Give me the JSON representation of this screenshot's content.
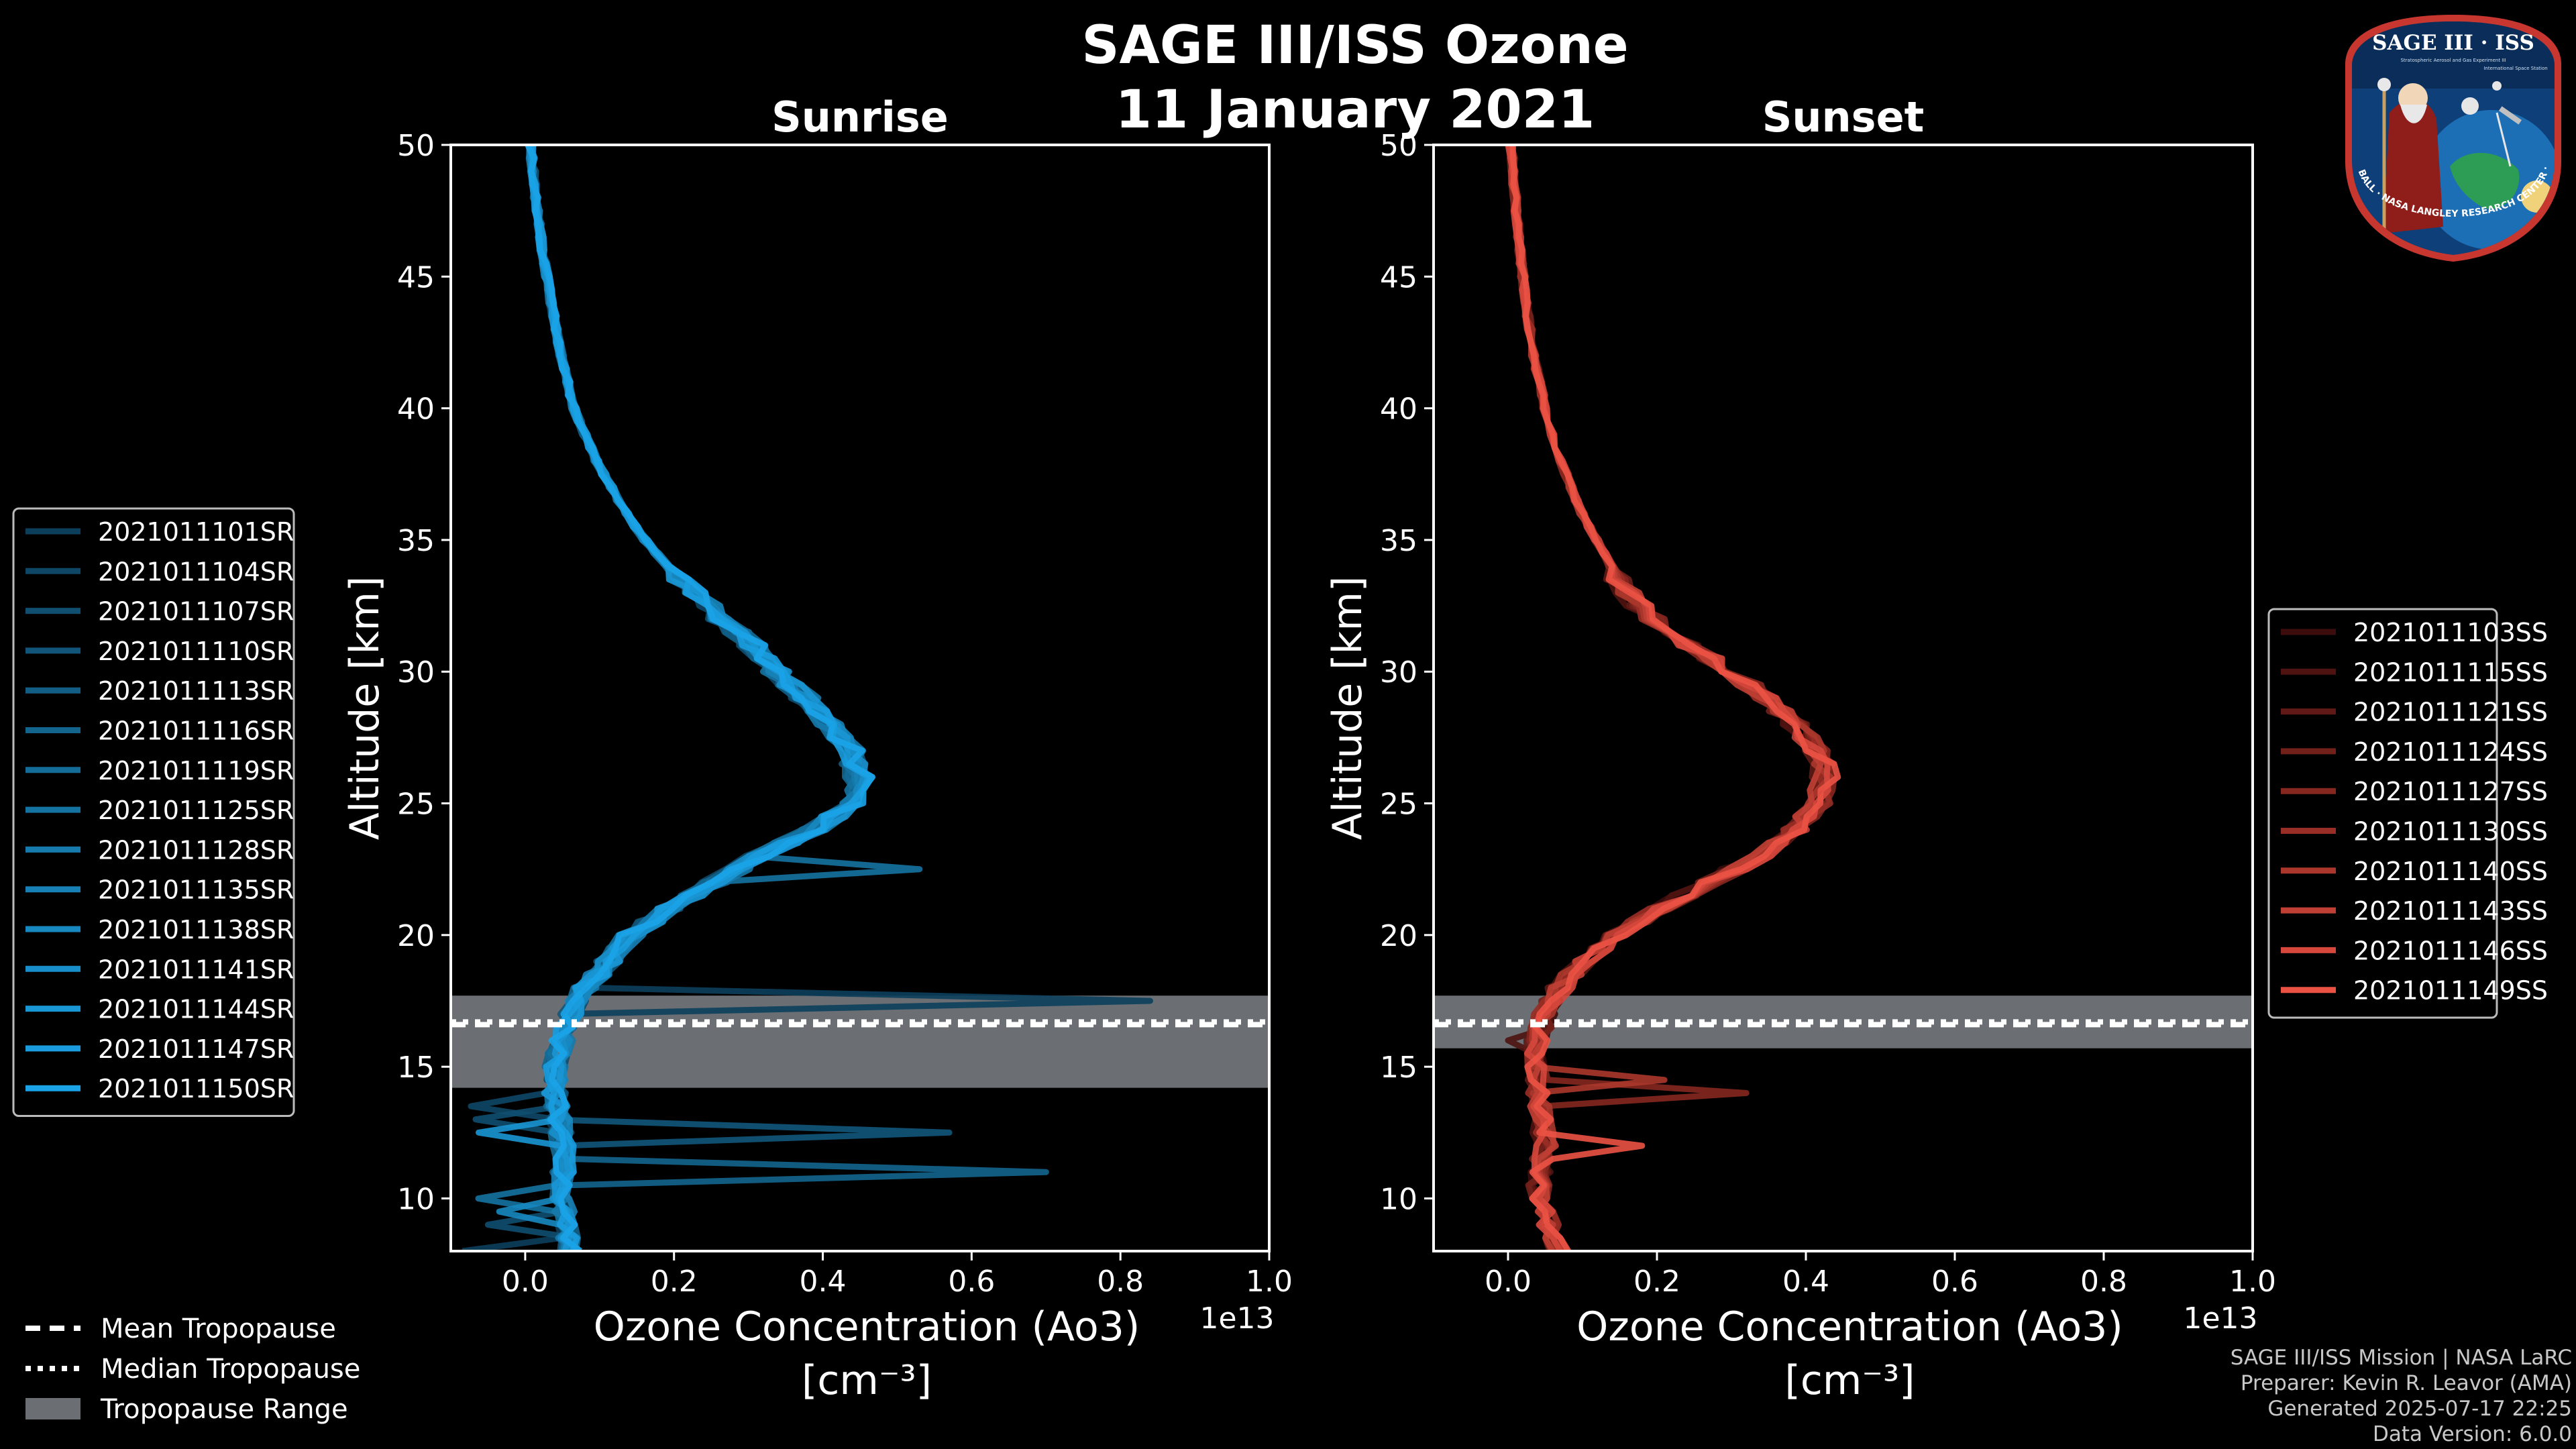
{
  "title_line1": "SAGE III/ISS Ozone",
  "title_line2": "11 January 2021",
  "badge": {
    "name": "SAGE III · ISS",
    "ring_text": "BALL · NASA LANGLEY RESEARCH CENTER · TAS · ESA",
    "inner_text_1": "Stratospheric Aerosol and Gas Experiment III",
    "inner_text_2": "International Space Station"
  },
  "credits": [
    "SAGE III/ISS Mission | NASA LaRC",
    "Preparer: Kevin R. Leavor (AMA)",
    "Generated 2025-07-17 22:25",
    "Data Version: 6.0.0"
  ],
  "colors": {
    "sunrise": "#1ba3e8",
    "sunset": "#f05545",
    "background": "#000000",
    "tropo_band": "#6b6e72"
  },
  "chart_data": [
    {
      "type": "line",
      "title": "Sunrise",
      "xlabel": "Ozone Concentration (Ao3)",
      "xlabel_units": "[cm⁻³]",
      "ylabel": "Altitude [km]",
      "x_scale_label": "1e13",
      "xlim": [
        -0.1,
        1.0
      ],
      "ylim": [
        8,
        50
      ],
      "xticks": [
        0.0,
        0.2,
        0.4,
        0.6,
        0.8,
        1.0
      ],
      "xtick_labels": [
        "0.0",
        "0.2",
        "0.4",
        "0.6",
        "0.8",
        "1.0"
      ],
      "yticks": [
        10,
        15,
        20,
        25,
        30,
        35,
        40,
        45,
        50
      ],
      "tropopause": {
        "mean": 16.6,
        "median": 16.7,
        "range": [
          14.2,
          17.7
        ]
      },
      "base_profile": {
        "altitude": [
          8,
          10,
          12,
          14,
          15,
          16,
          17,
          18,
          19,
          20,
          21,
          22,
          23,
          24,
          25,
          26,
          27,
          28,
          29,
          30,
          31,
          32,
          33,
          34,
          35,
          36,
          37,
          38,
          39,
          40,
          42,
          44,
          46,
          48,
          50
        ],
        "ozone": [
          0.06,
          0.05,
          0.05,
          0.04,
          0.04,
          0.05,
          0.06,
          0.08,
          0.11,
          0.14,
          0.19,
          0.25,
          0.31,
          0.38,
          0.43,
          0.44,
          0.43,
          0.4,
          0.37,
          0.33,
          0.3,
          0.26,
          0.22,
          0.19,
          0.16,
          0.135,
          0.115,
          0.095,
          0.08,
          0.065,
          0.048,
          0.035,
          0.023,
          0.014,
          0.007
        ]
      },
      "series": [
        {
          "name": "2021011101SR",
          "color": "#0c3f5c",
          "spike": {
            "alt": 17.3,
            "ozone": 0.84
          }
        },
        {
          "name": "2021011104SR",
          "color": "#0e4766"
        },
        {
          "name": "2021011107SR",
          "color": "#104f70"
        },
        {
          "name": "2021011110SR",
          "color": "#11567a",
          "spike": {
            "alt": 12.7,
            "ozone": 0.57
          }
        },
        {
          "name": "2021011113SR",
          "color": "#125e84"
        },
        {
          "name": "2021011116SR",
          "color": "#13658e",
          "spike": {
            "alt": 11.1,
            "ozone": 0.7
          }
        },
        {
          "name": "2021011119SR",
          "color": "#146c98"
        },
        {
          "name": "2021011125SR",
          "color": "#1573a2",
          "spike": {
            "alt": 22.5,
            "ozone": 0.53
          }
        },
        {
          "name": "2021011128SR",
          "color": "#167aac"
        },
        {
          "name": "2021011135SR",
          "color": "#1781b6"
        },
        {
          "name": "2021011138SR",
          "color": "#1788c0"
        },
        {
          "name": "2021011141SR",
          "color": "#188fca"
        },
        {
          "name": "2021011144SR",
          "color": "#1996d4"
        },
        {
          "name": "2021011147SR",
          "color": "#1a9cde"
        },
        {
          "name": "2021011150SR",
          "color": "#1ba3e8"
        }
      ],
      "tropopause_legend": [
        "Mean Tropopause",
        "Median Tropopause",
        "Tropopause Range"
      ]
    },
    {
      "type": "line",
      "title": "Sunset",
      "xlabel": "Ozone Concentration (Ao3)",
      "xlabel_units": "[cm⁻³]",
      "ylabel": "Altitude [km]",
      "x_scale_label": "1e13",
      "xlim": [
        -0.1,
        1.0
      ],
      "ylim": [
        8,
        50
      ],
      "xticks": [
        0.0,
        0.2,
        0.4,
        0.6,
        0.8,
        1.0
      ],
      "xtick_labels": [
        "0.0",
        "0.2",
        "0.4",
        "0.6",
        "0.8",
        "1.0"
      ],
      "yticks": [
        10,
        15,
        20,
        25,
        30,
        35,
        40,
        45,
        50
      ],
      "tropopause": {
        "mean": 16.6,
        "median": 16.7,
        "range": [
          15.7,
          17.7
        ]
      },
      "base_profile": {
        "altitude": [
          8,
          10,
          12,
          14,
          15,
          16,
          17,
          18,
          19,
          20,
          21,
          22,
          23,
          24,
          25,
          26,
          27,
          28,
          29,
          30,
          31,
          32,
          33,
          34,
          35,
          36,
          37,
          38,
          39,
          40,
          42,
          44,
          46,
          48,
          50
        ],
        "ozone": [
          0.07,
          0.04,
          0.05,
          0.04,
          0.04,
          0.04,
          0.05,
          0.07,
          0.11,
          0.15,
          0.21,
          0.28,
          0.35,
          0.4,
          0.43,
          0.44,
          0.43,
          0.4,
          0.36,
          0.31,
          0.25,
          0.2,
          0.165,
          0.14,
          0.12,
          0.1,
          0.085,
          0.072,
          0.06,
          0.05,
          0.035,
          0.024,
          0.016,
          0.01,
          0.004
        ]
      },
      "series": [
        {
          "name": "2021011103SS",
          "color": "#3d0c0c"
        },
        {
          "name": "2021011115SS",
          "color": "#4e1311",
          "spike": {
            "alt": 16.2,
            "ozone": 0.0
          }
        },
        {
          "name": "2021011121SS",
          "color": "#601915"
        },
        {
          "name": "2021011124SS",
          "color": "#72201a"
        },
        {
          "name": "2021011127SS",
          "color": "#85271f",
          "spike": {
            "alt": 14.0,
            "ozone": 0.32
          }
        },
        {
          "name": "2021011130SS",
          "color": "#982e25"
        },
        {
          "name": "2021011140SS",
          "color": "#ab372c",
          "spike": {
            "alt": 14.3,
            "ozone": 0.21
          }
        },
        {
          "name": "2021011143SS",
          "color": "#c03f34"
        },
        {
          "name": "2021011146SS",
          "color": "#d6473c"
        },
        {
          "name": "2021011149SS",
          "color": "#eb5244",
          "spike": {
            "alt": 12.0,
            "ozone": 0.18
          }
        }
      ]
    }
  ]
}
